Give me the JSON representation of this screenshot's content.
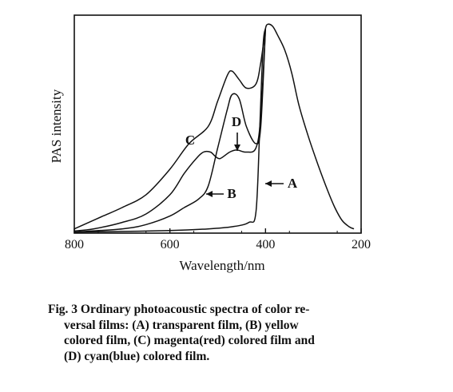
{
  "chart_data": {
    "type": "line",
    "xlabel": "Wavelength/nm",
    "ylabel": "PAS intensity",
    "xlim": [
      800,
      200
    ],
    "ylim": [
      0,
      100
    ],
    "x_ticks": [
      "800",
      "600",
      "400",
      "200"
    ],
    "y_ticks_shown": false,
    "grid": false,
    "series": [
      {
        "name": "A",
        "x": [
          800,
          700,
          600,
          520,
          470,
          435,
          420,
          412,
          405,
          400,
          395,
          385,
          375,
          360,
          345,
          330,
          310,
          290,
          270,
          255,
          240,
          225,
          215
        ],
        "y": [
          0.5,
          0.8,
          1.2,
          2,
          3,
          5,
          10,
          50,
          88,
          96,
          98,
          97,
          93,
          86,
          75,
          60,
          45,
          32,
          20,
          12,
          6,
          3,
          2
        ]
      },
      {
        "name": "B",
        "x": [
          800,
          760,
          700,
          650,
          600,
          570,
          545,
          530,
          515,
          505,
          495,
          475,
          460,
          440,
          420,
          410,
          400
        ],
        "y": [
          1,
          2,
          5,
          9,
          18,
          28,
          35,
          38,
          38,
          36,
          35,
          38,
          39,
          38,
          40,
          55,
          96
        ]
      },
      {
        "name": "C",
        "x": [
          800,
          780,
          740,
          700,
          650,
          600,
          560,
          520,
          500,
          480,
          470,
          455,
          440,
          420,
          410,
          400
        ],
        "y": [
          2,
          4,
          8,
          12,
          18,
          30,
          42,
          50,
          62,
          74,
          76,
          72,
          68,
          70,
          80,
          96
        ]
      },
      {
        "name": "D",
        "x": [
          800,
          700,
          650,
          600,
          570,
          540,
          520,
          500,
          480,
          470,
          455,
          440,
          420,
          410,
          400
        ],
        "y": [
          0.5,
          2,
          4,
          8,
          12,
          16,
          22,
          40,
          58,
          65,
          63,
          50,
          42,
          50,
          96
        ]
      }
    ],
    "annotations": [
      {
        "label": "A",
        "arrow": "left"
      },
      {
        "label": "B",
        "arrow": "left"
      },
      {
        "label": "C",
        "arrow": "none"
      },
      {
        "label": "D",
        "arrow": "down"
      }
    ]
  },
  "caption": {
    "lines": [
      "Fig. 3  Ordinary  photoacoustic spectra of color re-",
      "versal films:  (A) transparent film,  (B) yellow",
      "colored film,  (C) magenta(red) colored film and",
      "(D) cyan(blue) colored film."
    ]
  }
}
